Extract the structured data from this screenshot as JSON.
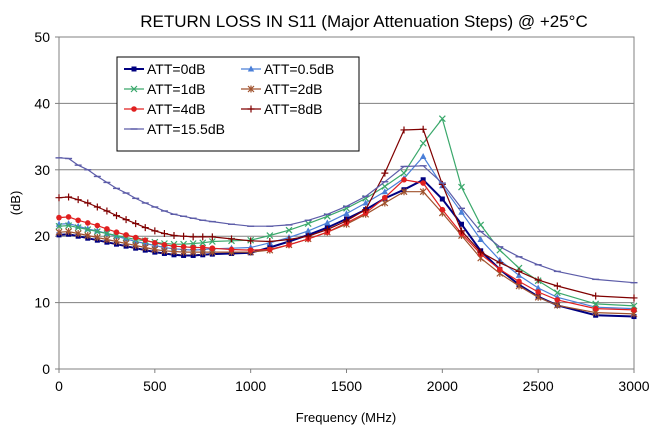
{
  "chart_data": {
    "type": "line",
    "title": "RETURN LOSS IN S11 (Major Attenuation Steps) @ +25°C",
    "xlabel": "Frequency (MHz)",
    "ylabel": "(dB)",
    "xlim": [
      0,
      3000
    ],
    "ylim": [
      0,
      50
    ],
    "xticks": [
      0,
      500,
      1000,
      1500,
      2000,
      2500,
      3000
    ],
    "yticks": [
      0,
      10,
      20,
      30,
      40,
      50
    ],
    "grid": "horizontal",
    "legend_position": "top-left",
    "legend_columns": 2,
    "x": [
      0,
      50,
      100,
      150,
      200,
      250,
      300,
      350,
      400,
      450,
      500,
      550,
      600,
      650,
      700,
      750,
      800,
      900,
      1000,
      1100,
      1200,
      1300,
      1400,
      1500,
      1600,
      1700,
      1800,
      1900,
      2000,
      2100,
      2200,
      2300,
      2400,
      2500,
      2600,
      2800,
      3000
    ],
    "series": [
      {
        "name": "ATT=0dB",
        "color": "#000080",
        "marker": "square",
        "values": [
          20.2,
          20.3,
          20.0,
          19.7,
          19.4,
          19.1,
          18.8,
          18.5,
          18.2,
          17.9,
          17.6,
          17.4,
          17.2,
          17.1,
          17.1,
          17.2,
          17.3,
          17.4,
          17.5,
          18.3,
          19.2,
          20.2,
          21.3,
          22.6,
          24.0,
          25.7,
          27.0,
          28.5,
          25.6,
          21.8,
          17.8,
          15.0,
          12.7,
          10.9,
          9.6,
          8.1,
          7.9
        ]
      },
      {
        "name": "ATT=0.5dB",
        "color": "#4a7fd8",
        "marker": "triangle",
        "values": [
          21.8,
          21.9,
          21.5,
          21.1,
          20.8,
          20.4,
          20.0,
          19.6,
          19.2,
          18.9,
          18.6,
          18.3,
          18.1,
          18.0,
          17.9,
          18.0,
          18.1,
          18.2,
          18.3,
          19.0,
          19.8,
          20.8,
          22.0,
          23.4,
          25.0,
          26.7,
          28.7,
          32.0,
          27.6,
          23.6,
          19.5,
          16.4,
          14.1,
          12.2,
          10.8,
          9.3,
          9.1
        ]
      },
      {
        "name": "ATT=1dB",
        "color": "#3aa86b",
        "marker": "x",
        "values": [
          21.5,
          21.6,
          21.3,
          21.0,
          20.7,
          20.4,
          20.1,
          19.8,
          19.5,
          19.3,
          19.1,
          18.9,
          18.8,
          18.8,
          18.9,
          19.0,
          19.2,
          19.3,
          19.4,
          20.1,
          20.9,
          21.9,
          23.0,
          24.2,
          25.7,
          27.5,
          29.5,
          34.0,
          37.7,
          27.4,
          21.7,
          17.9,
          15.2,
          13.3,
          11.5,
          9.8,
          9.5
        ]
      },
      {
        "name": "ATT=2dB",
        "color": "#a0522d",
        "marker": "star",
        "values": [
          20.6,
          20.7,
          20.4,
          20.1,
          19.8,
          19.5,
          19.2,
          18.9,
          18.6,
          18.3,
          18.0,
          17.8,
          17.7,
          17.6,
          17.6,
          17.6,
          17.6,
          17.6,
          17.6,
          17.9,
          18.7,
          19.6,
          20.6,
          21.8,
          23.3,
          25.0,
          26.7,
          26.7,
          23.5,
          20.1,
          16.7,
          14.4,
          12.5,
          10.8,
          9.6,
          8.5,
          8.3
        ]
      },
      {
        "name": "ATT=4dB",
        "color": "#e02020",
        "marker": "circle",
        "values": [
          22.8,
          22.9,
          22.4,
          22.0,
          21.6,
          21.1,
          20.6,
          20.2,
          19.8,
          19.4,
          19.0,
          18.7,
          18.5,
          18.4,
          18.3,
          18.3,
          18.2,
          18.0,
          17.9,
          18.0,
          18.7,
          19.6,
          20.6,
          22.0,
          23.5,
          25.8,
          28.5,
          28.0,
          24.0,
          20.4,
          17.3,
          15.0,
          13.2,
          11.6,
          10.4,
          9.1,
          8.9
        ]
      },
      {
        "name": "ATT=8dB",
        "color": "#800000",
        "marker": "plus",
        "values": [
          25.8,
          25.9,
          25.5,
          25.0,
          24.4,
          23.8,
          23.1,
          22.5,
          21.9,
          21.3,
          20.8,
          20.4,
          20.1,
          20.0,
          19.9,
          19.9,
          19.9,
          19.6,
          19.3,
          19.2,
          19.5,
          20.0,
          21.0,
          22.3,
          24.0,
          29.5,
          36.0,
          36.1,
          27.8,
          20.8,
          17.6,
          16.0,
          14.7,
          13.4,
          12.5,
          11.0,
          10.7
        ]
      },
      {
        "name": "ATT=15.5dB",
        "color": "#5c5ca8",
        "marker": "dash",
        "values": [
          31.8,
          31.7,
          30.7,
          30.0,
          29.0,
          28.1,
          27.2,
          26.5,
          25.7,
          25.0,
          24.4,
          23.8,
          23.3,
          23.0,
          22.7,
          22.4,
          22.2,
          21.8,
          21.5,
          21.5,
          21.7,
          22.4,
          23.3,
          24.5,
          26.0,
          28.2,
          30.5,
          30.6,
          28.0,
          24.2,
          20.7,
          18.4,
          16.9,
          15.7,
          14.7,
          13.5,
          13.0
        ]
      }
    ]
  }
}
